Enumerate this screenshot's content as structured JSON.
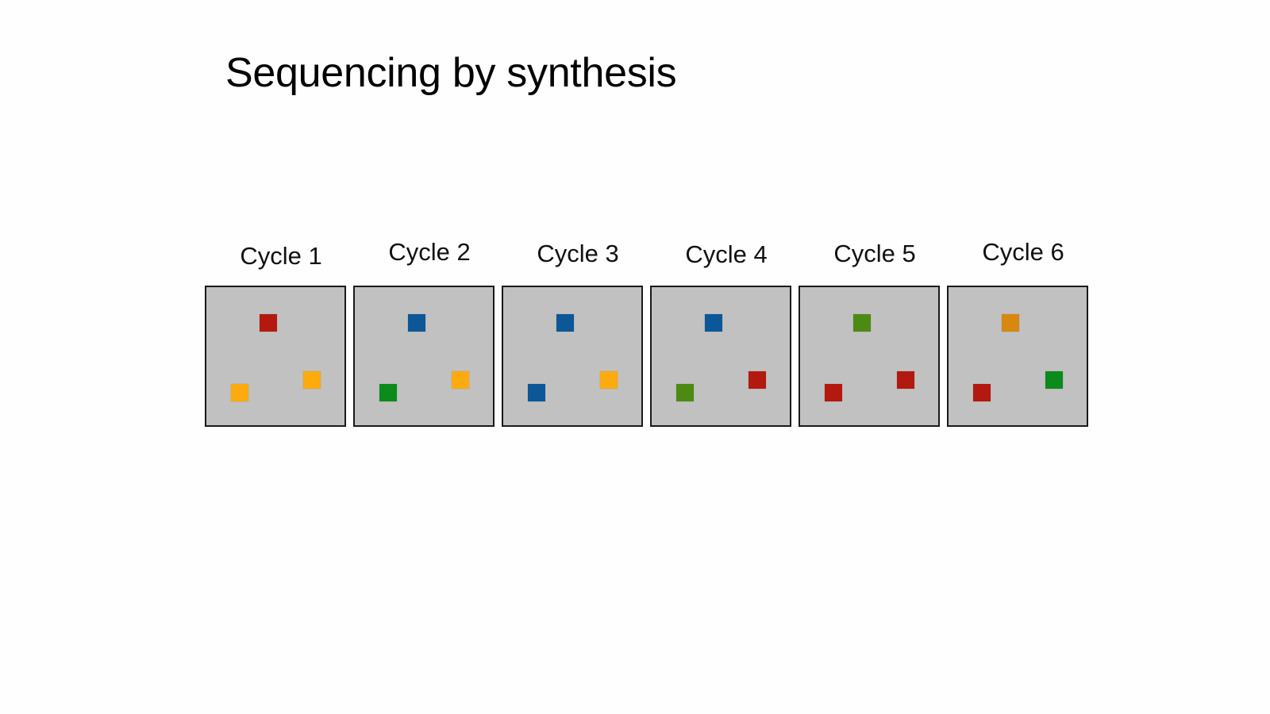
{
  "slide": {
    "title": "Sequencing by synthesis"
  },
  "colors": {
    "red": "#b3190e",
    "orange": "#fcaa0d",
    "dark_orange": "#d8870f",
    "blue": "#0b5797",
    "green": "#0b8b1a",
    "olive_green": "#4d8a14",
    "panel": "#c1c1c1",
    "border": "#1a1a1a"
  },
  "cycles": [
    {
      "label": "Cycle 1",
      "spots": {
        "top": "red",
        "right": "orange",
        "left": "orange"
      }
    },
    {
      "label": "Cycle 2",
      "spots": {
        "top": "blue",
        "right": "orange",
        "left": "green"
      }
    },
    {
      "label": "Cycle 3",
      "spots": {
        "top": "blue",
        "right": "orange",
        "left": "blue"
      }
    },
    {
      "label": "Cycle 4",
      "spots": {
        "top": "blue",
        "right": "red",
        "left": "olive_green"
      }
    },
    {
      "label": "Cycle 5",
      "spots": {
        "top": "olive_green",
        "right": "red",
        "left": "red"
      }
    },
    {
      "label": "Cycle 6",
      "spots": {
        "top": "dark_orange",
        "right": "green",
        "left": "red"
      }
    }
  ]
}
